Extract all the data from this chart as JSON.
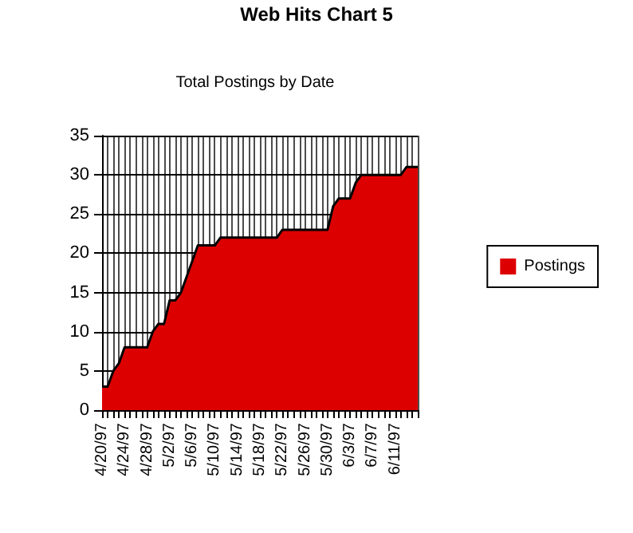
{
  "chart_data": {
    "type": "area",
    "title": "Total Postings by Date",
    "annotations": [
      "Web Hits Chart 5"
    ],
    "categories": [
      "4/20/97",
      null,
      null,
      null,
      "4/24/97",
      null,
      null,
      null,
      "4/28/97",
      null,
      null,
      null,
      "5/2/97",
      null,
      null,
      null,
      "5/6/97",
      null,
      null,
      null,
      "5/10/97",
      null,
      null,
      null,
      "5/14/97",
      null,
      null,
      null,
      "5/18/97",
      null,
      null,
      null,
      "5/22/97",
      null,
      null,
      null,
      "5/26/97",
      null,
      null,
      null,
      "5/30/97",
      null,
      null,
      null,
      "6/3/97",
      null,
      null,
      null,
      "6/7/97",
      null,
      null,
      null,
      "6/11/97",
      null,
      null,
      null,
      null
    ],
    "series": [
      {
        "name": "Postings",
        "color": "#dd0000",
        "values": [
          3,
          3,
          5,
          6,
          8,
          8,
          8,
          8,
          8,
          10,
          11,
          11,
          14,
          14,
          15,
          17,
          19,
          21,
          21,
          21,
          21,
          22,
          22,
          22,
          22,
          22,
          22,
          22,
          22,
          22,
          22,
          22,
          23,
          23,
          23,
          23,
          23,
          23,
          23,
          23,
          23,
          26,
          27,
          27,
          27,
          29,
          30,
          30,
          30,
          30,
          30,
          30,
          30,
          30,
          31,
          31,
          31
        ]
      }
    ],
    "ylim": [
      0,
      35
    ],
    "yticks": [
      0,
      5,
      10,
      15,
      20,
      25,
      30,
      35
    ],
    "grid": true,
    "legend": "right"
  }
}
